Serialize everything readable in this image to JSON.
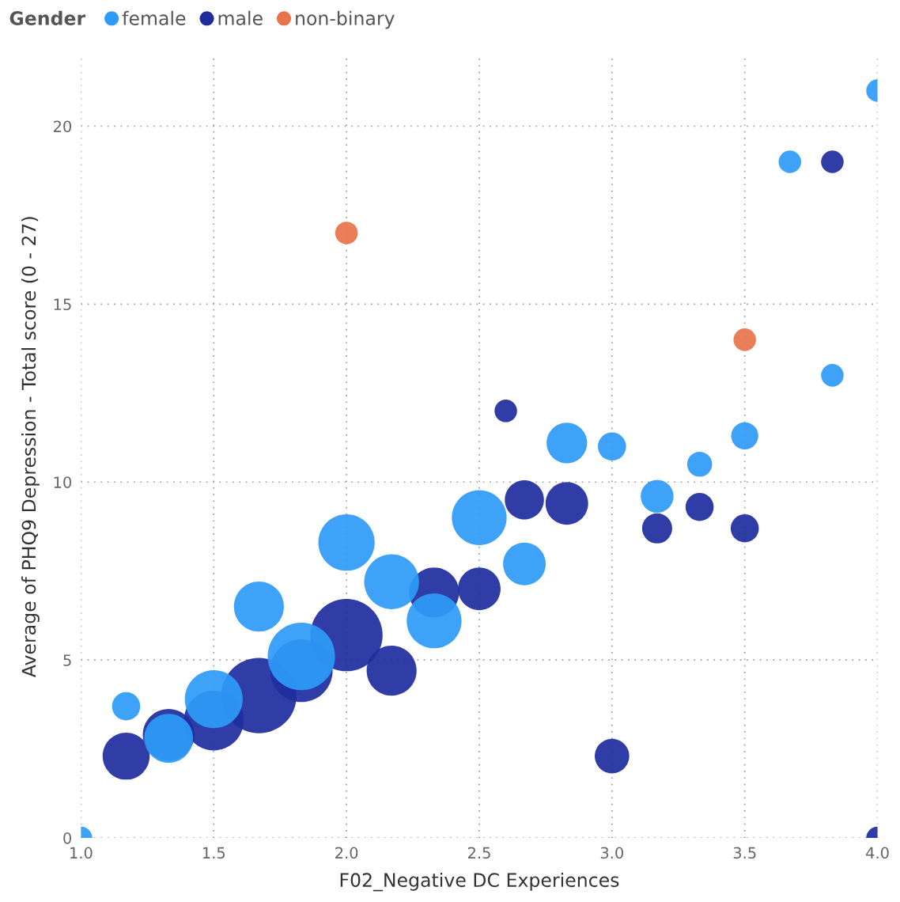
{
  "chart_data": {
    "type": "bubble",
    "xlabel": "F02_Negative DC Experiences",
    "ylabel": "Average of PHQ9 Depression - Total score (0 - 27)",
    "legend_title": "Gender",
    "legend": "top left",
    "grid": true,
    "marker": "circle",
    "xlim": [
      1.0,
      4.0
    ],
    "xticks": [
      {
        "value": 1.0,
        "label": "1.0"
      },
      {
        "value": 1.5,
        "label": "1.5"
      },
      {
        "value": 2.0,
        "label": "2.0"
      },
      {
        "value": 2.5,
        "label": "2.5"
      },
      {
        "value": 3.0,
        "label": "3.0"
      },
      {
        "value": 3.5,
        "label": "3.5"
      },
      {
        "value": 4.0,
        "label": "4.0"
      }
    ],
    "ylim": [
      0,
      22
    ],
    "yticks": [
      0,
      5,
      10,
      15,
      20
    ],
    "series": [
      {
        "name": "female",
        "color": "#2e9bf7",
        "x": [
          4.0,
          3.67,
          3.83,
          3.5,
          3.33,
          3.17,
          3.0,
          2.83,
          2.67,
          2.5,
          2.33,
          2.17,
          2.0,
          1.83,
          1.67,
          1.5,
          1.33,
          1.17,
          1.0
        ],
        "values": [
          21.0,
          19.0,
          13.0,
          11.3,
          10.5,
          9.6,
          11.0,
          11.1,
          7.7,
          9.0,
          6.1,
          7.2,
          8.3,
          5.1,
          6.5,
          3.9,
          2.8,
          3.7,
          0
        ],
        "sizes": [
          0.09,
          0.09,
          0.09,
          0.13,
          0.11,
          0.19,
          0.14,
          0.29,
          0.32,
          0.53,
          0.53,
          0.53,
          0.56,
          0.8,
          0.44,
          0.59,
          0.42,
          0.14,
          0.09
        ]
      },
      {
        "name": "male",
        "color": "#1f2c9e",
        "x": [
          3.83,
          4.0,
          2.6,
          2.67,
          2.83,
          3.17,
          3.33,
          3.5,
          3.0,
          2.5,
          2.33,
          2.17,
          2.0,
          1.83,
          1.67,
          1.5,
          1.33,
          1.17
        ],
        "values": [
          19.0,
          0,
          12.0,
          9.5,
          9.4,
          8.7,
          9.3,
          8.7,
          2.3,
          7.0,
          6.9,
          4.7,
          5.7,
          4.7,
          4.0,
          3.3,
          2.9,
          2.3
        ],
        "sizes": [
          0.09,
          0.09,
          0.09,
          0.27,
          0.32,
          0.16,
          0.14,
          0.14,
          0.21,
          0.32,
          0.44,
          0.44,
          0.92,
          0.69,
          1.0,
          0.63,
          0.47,
          0.39
        ]
      },
      {
        "name": "non-binary",
        "color": "#e8734a",
        "x": [
          2.0,
          3.5
        ],
        "values": [
          17.0,
          14.0
        ],
        "sizes": [
          0.09,
          0.09
        ]
      }
    ]
  }
}
